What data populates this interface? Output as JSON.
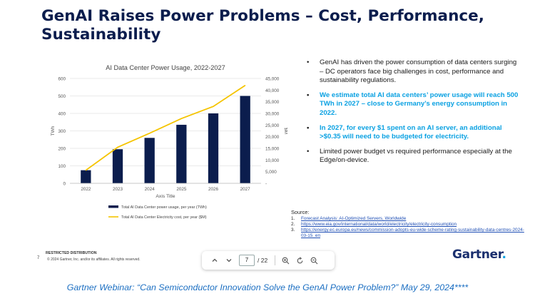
{
  "slide": {
    "title": "GenAI Raises Power Problems – Cost, Performance, Sustainability",
    "bullets": [
      {
        "text": "GenAI has driven the power consumption of data centers surging – DC operators face big challenges in cost, performance and sustainability regulations.",
        "highlight": false
      },
      {
        "text": "We estimate total AI data centers’ power usage will reach 500 TWh in 2027 – close to Germany’s energy consumption in 2022.",
        "highlight": true
      },
      {
        "text": "In 2027, for every $1 spent on an AI server, an additional >$0.35 will need to be budgeted for electricity.",
        "highlight": true
      },
      {
        "text": "Limited power budget vs required performance especially at the Edge/on-device.",
        "highlight": false
      }
    ],
    "source": {
      "label": "Source:",
      "items": [
        {
          "n": "1.",
          "text": "Forecast Analysis: AI-Optimized Servers, Worldwide"
        },
        {
          "n": "2.",
          "text": "https://www.eia.gov/international/data/world/electricity/electricity-consumption"
        },
        {
          "n": "3.",
          "text": "https://energy.ec.europa.eu/news/commission-adopts-eu-wide-scheme-rating-sustainability-data-centres-2024-03-15_en"
        }
      ]
    },
    "footer": {
      "page_number": "7",
      "restricted": "RESTRICTED DISTRIBUTION",
      "copyright": "© 2024 Gartner, Inc. and/or its affiliates. All rights reserved."
    },
    "logo": "Gartner",
    "logo_dot": "."
  },
  "toolbar": {
    "current_page": "7",
    "total_pages": "/ 22"
  },
  "caption": "Gartner Webinar: “Can Semiconductor Innovation Solve the GenAI Power Problem?” May 29, 2024****",
  "colors": {
    "bar": "#0b1d4d",
    "line": "#f5c400",
    "accent": "#0aa1e2",
    "title": "#0b1d4d",
    "caption": "#1c6fc2"
  },
  "chart_data": {
    "type": "bar",
    "title": "AI Data Center Power Usage, 2022-2027",
    "categories": [
      "2022",
      "2023",
      "2024",
      "2025",
      "2026",
      "2027"
    ],
    "xlabel": "Axis Title",
    "ylabel": "TWh",
    "y2label": "$M",
    "ylim": [
      0,
      600
    ],
    "y2lim": [
      0,
      45000
    ],
    "yticks": [
      "0",
      "100",
      "200",
      "300",
      "400",
      "500",
      "600"
    ],
    "y2ticks": [
      "-",
      "5,000",
      "10,000",
      "15,000",
      "20,000",
      "25,000",
      "30,000",
      "35,000",
      "40,000",
      "45,000"
    ],
    "grid": true,
    "series": [
      {
        "name": "Total AI Data Center power usage, per year (TWh)",
        "type": "bar",
        "axis": "left",
        "values": [
          75,
          195,
          260,
          335,
          400,
          500
        ]
      },
      {
        "name": "Total AI Data Center Electricity cost, per year ($M)",
        "type": "line",
        "axis": "right",
        "values": [
          5600,
          15500,
          21500,
          27800,
          33000,
          42000
        ]
      }
    ],
    "legend": "bottom"
  }
}
